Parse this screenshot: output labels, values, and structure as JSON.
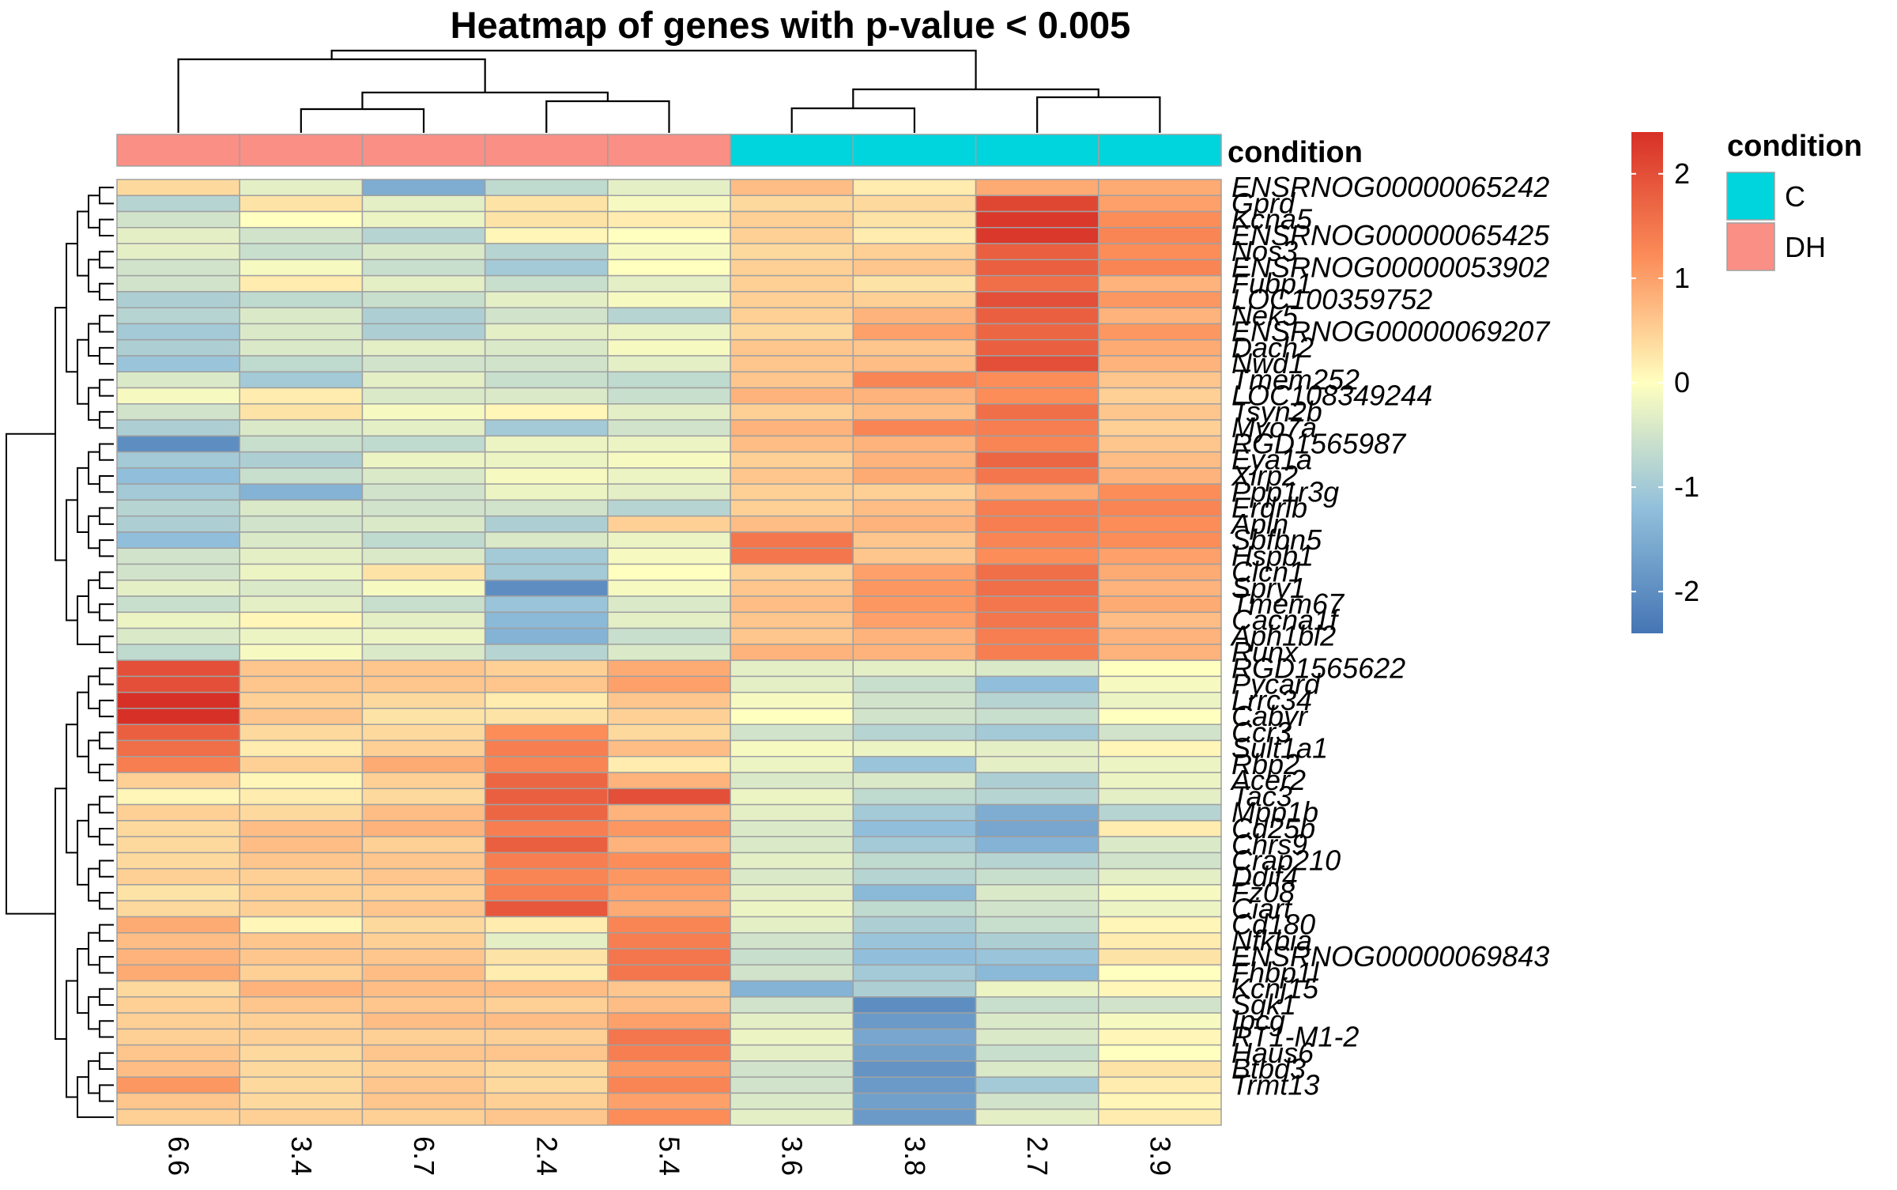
{
  "chart_data": {
    "type": "heatmap",
    "title": "Heatmap of genes with p-value < 0.005",
    "columns": [
      "6.6",
      "3.4",
      "6.7",
      "2.4",
      "5.4",
      "3.6",
      "3.8",
      "2.7",
      "3.9"
    ],
    "column_condition": [
      "DH",
      "DH",
      "DH",
      "DH",
      "DH",
      "C",
      "C",
      "C",
      "C"
    ],
    "annotation_label": "condition",
    "annotation_legend": {
      "title": "condition",
      "entries": [
        {
          "label": "C",
          "color": "#00d4dc"
        },
        {
          "label": "DH",
          "color": "#fa8f86"
        }
      ]
    },
    "color_scale": {
      "ticks": [
        "2",
        "1",
        "0",
        "-1",
        "-2"
      ],
      "tick_values": [
        2,
        1,
        0,
        -1,
        -2
      ],
      "range": [
        -2.4,
        2.4
      ],
      "stops": [
        {
          "value": -2.4,
          "color": "#4575b4"
        },
        {
          "value": -1.2,
          "color": "#91bfdb"
        },
        {
          "value": 0,
          "color": "#ffffbf"
        },
        {
          "value": 1.2,
          "color": "#fc8d59"
        },
        {
          "value": 2.4,
          "color": "#d73027"
        }
      ]
    },
    "rows": [
      {
        "label": "ENSRNOG00000065242",
        "values": [
          0.4,
          -0.3,
          -1.5,
          -0.7,
          -0.3,
          0.7,
          0.2,
          0.9,
          0.9
        ]
      },
      {
        "label": "Gprd",
        "values": [
          -0.8,
          0.3,
          -0.3,
          0.3,
          -0.1,
          0.4,
          0.4,
          2.1,
          1.0
        ]
      },
      {
        "label": "Kcna5",
        "values": [
          -0.5,
          0.0,
          -0.2,
          0.3,
          0.2,
          0.5,
          0.3,
          2.3,
          1.2
        ]
      },
      {
        "label": "ENSRNOG00000065425",
        "values": [
          -0.3,
          -0.5,
          -0.8,
          0.1,
          0.0,
          0.5,
          0.2,
          2.3,
          1.3
        ]
      },
      {
        "label": "Nos3",
        "values": [
          -0.3,
          -0.6,
          -0.4,
          -0.8,
          -0.1,
          0.4,
          0.5,
          1.8,
          1.2
        ]
      },
      {
        "label": "ENSRNOG00000053902",
        "values": [
          -0.5,
          -0.1,
          -0.6,
          -1.0,
          0.0,
          0.5,
          0.6,
          1.8,
          1.3
        ]
      },
      {
        "label": "Fubp1",
        "values": [
          -0.5,
          0.2,
          -0.3,
          -0.6,
          -0.3,
          0.5,
          0.3,
          1.6,
          0.8
        ]
      },
      {
        "label": "LOC100359752",
        "values": [
          -0.9,
          -0.7,
          -0.6,
          -0.3,
          -0.1,
          0.5,
          0.5,
          2.0,
          1.1
        ]
      },
      {
        "label": "Nek5",
        "values": [
          -0.8,
          -0.4,
          -0.9,
          -0.5,
          -0.8,
          0.5,
          0.8,
          1.8,
          0.8
        ]
      },
      {
        "label": "ENSRNOG00000069207",
        "values": [
          -1.0,
          -0.4,
          -0.9,
          -0.3,
          -0.2,
          0.4,
          1.0,
          1.7,
          1.1
        ]
      },
      {
        "label": "Dach2",
        "values": [
          -0.9,
          -0.4,
          -0.3,
          -0.4,
          -0.1,
          0.6,
          0.6,
          1.8,
          0.9
        ]
      },
      {
        "label": "Nwd1",
        "values": [
          -1.1,
          -0.7,
          -0.5,
          -0.5,
          -0.3,
          0.6,
          0.7,
          2.0,
          0.8
        ]
      },
      {
        "label": "Tmem252",
        "values": [
          -0.4,
          -1.0,
          -0.3,
          -0.6,
          -0.7,
          0.6,
          1.3,
          1.2,
          0.6
        ]
      },
      {
        "label": "LOC108349244",
        "values": [
          -0.1,
          0.2,
          -0.4,
          -0.4,
          -0.6,
          0.8,
          0.8,
          1.2,
          0.5
        ]
      },
      {
        "label": "Tsyn2b",
        "values": [
          -0.5,
          0.3,
          -0.1,
          0.1,
          -0.3,
          0.5,
          0.7,
          1.6,
          0.6
        ]
      },
      {
        "label": "Myo7a",
        "values": [
          -0.9,
          -0.4,
          -0.3,
          -1.0,
          -0.5,
          0.8,
          1.3,
          1.4,
          0.5
        ]
      },
      {
        "label": "RGD1565987",
        "values": [
          -2.0,
          -0.6,
          -0.7,
          -0.2,
          -0.2,
          0.7,
          0.8,
          1.3,
          0.6
        ]
      },
      {
        "label": "Eya1a",
        "values": [
          -1.0,
          -0.9,
          -0.2,
          -0.2,
          -0.1,
          0.5,
          0.8,
          1.7,
          0.7
        ]
      },
      {
        "label": "Xirp2",
        "values": [
          -1.2,
          -0.6,
          -0.4,
          -0.1,
          -0.2,
          0.6,
          0.9,
          1.5,
          0.8
        ]
      },
      {
        "label": "Ppp1r3g",
        "values": [
          -1.0,
          -1.4,
          -0.5,
          -0.2,
          -0.3,
          0.5,
          0.5,
          0.9,
          1.2
        ]
      },
      {
        "label": "Erdrlb",
        "values": [
          -0.8,
          -0.4,
          -0.5,
          -0.5,
          -0.8,
          0.5,
          0.7,
          1.4,
          1.3
        ]
      },
      {
        "label": "Apln",
        "values": [
          -0.9,
          -0.5,
          -0.4,
          -0.9,
          0.5,
          0.7,
          0.8,
          1.4,
          1.2
        ]
      },
      {
        "label": "Sbfbn5",
        "values": [
          -1.2,
          -0.4,
          -0.7,
          -0.4,
          -0.2,
          1.5,
          0.6,
          1.3,
          1.2
        ]
      },
      {
        "label": "Hspb1",
        "values": [
          -0.5,
          -0.3,
          -0.4,
          -1.0,
          -0.1,
          1.5,
          0.6,
          1.2,
          1.0
        ]
      },
      {
        "label": "Clcn1",
        "values": [
          -0.5,
          -0.2,
          0.3,
          -1.0,
          0.0,
          0.5,
          1.0,
          1.6,
          0.9
        ]
      },
      {
        "label": "Spry1",
        "values": [
          -0.3,
          -0.4,
          -0.1,
          -2.0,
          -0.1,
          0.6,
          1.1,
          1.6,
          0.8
        ]
      },
      {
        "label": "Tmem67",
        "values": [
          -0.6,
          -0.3,
          -0.6,
          -1.1,
          -0.4,
          0.7,
          1.1,
          1.5,
          0.9
        ]
      },
      {
        "label": "Cacna1f",
        "values": [
          -0.2,
          0.1,
          -0.3,
          -1.3,
          -0.3,
          0.6,
          1.0,
          1.5,
          0.7
        ]
      },
      {
        "label": "Aph1bl2",
        "values": [
          -0.4,
          -0.2,
          -0.2,
          -1.4,
          -0.6,
          0.6,
          0.8,
          1.4,
          0.8
        ]
      },
      {
        "label": "Runx",
        "values": [
          -0.7,
          -0.1,
          -0.4,
          -0.8,
          -0.4,
          0.8,
          0.8,
          1.4,
          0.8
        ]
      },
      {
        "label": "RGD1565622",
        "values": [
          2.0,
          0.6,
          0.6,
          0.5,
          0.9,
          -0.3,
          -0.3,
          -0.4,
          0.0
        ]
      },
      {
        "label": "Pycard",
        "values": [
          2.0,
          0.6,
          0.6,
          0.6,
          1.0,
          -0.3,
          -0.6,
          -1.2,
          -0.1
        ]
      },
      {
        "label": "Lrrc34",
        "values": [
          2.4,
          0.5,
          0.4,
          0.2,
          0.6,
          -0.1,
          -0.5,
          -0.8,
          -0.2
        ]
      },
      {
        "label": "Cabyr",
        "values": [
          2.4,
          0.6,
          0.3,
          0.3,
          0.5,
          0.0,
          -0.5,
          -0.6,
          0.0
        ]
      },
      {
        "label": "Ccr3",
        "values": [
          1.8,
          0.4,
          0.4,
          1.2,
          0.4,
          -0.5,
          -0.8,
          -1.0,
          -0.5
        ]
      },
      {
        "label": "Sult1a1",
        "values": [
          1.6,
          0.2,
          0.5,
          1.4,
          0.7,
          -0.1,
          -0.2,
          -0.3,
          0.1
        ]
      },
      {
        "label": "Rbp2",
        "values": [
          1.4,
          0.5,
          0.9,
          1.3,
          0.2,
          -0.2,
          -1.1,
          -0.3,
          -0.2
        ]
      },
      {
        "label": "Acer2",
        "values": [
          0.5,
          0.1,
          0.5,
          1.7,
          0.8,
          -0.4,
          -0.4,
          -0.9,
          -0.2
        ]
      },
      {
        "label": "Tac3",
        "values": [
          0.1,
          0.2,
          0.4,
          1.8,
          2.0,
          -0.2,
          -0.7,
          -0.8,
          -0.3
        ]
      },
      {
        "label": "Mpp1b",
        "values": [
          0.5,
          0.4,
          0.7,
          1.7,
          0.8,
          -0.3,
          -1.0,
          -1.5,
          -0.8
        ]
      },
      {
        "label": "Cd25b",
        "values": [
          0.4,
          0.7,
          0.8,
          1.4,
          1.1,
          -0.4,
          -1.2,
          -1.6,
          0.2
        ]
      },
      {
        "label": "Chrs9",
        "values": [
          0.4,
          0.7,
          0.5,
          1.8,
          0.8,
          -0.4,
          -1.0,
          -1.4,
          -0.4
        ]
      },
      {
        "label": "Crap210",
        "values": [
          0.4,
          0.6,
          0.6,
          1.4,
          1.2,
          -0.3,
          -0.7,
          -0.8,
          -0.5
        ]
      },
      {
        "label": "Ddif4",
        "values": [
          0.5,
          0.5,
          0.6,
          1.3,
          1.1,
          -0.4,
          -0.8,
          -0.6,
          -0.3
        ]
      },
      {
        "label": "Fz08",
        "values": [
          0.3,
          0.5,
          0.5,
          1.4,
          1.0,
          -0.3,
          -1.3,
          -0.4,
          -0.1
        ]
      },
      {
        "label": "Ciart",
        "values": [
          0.4,
          0.5,
          0.6,
          1.9,
          0.9,
          -0.2,
          -0.7,
          -0.5,
          -0.2
        ]
      },
      {
        "label": "Cd180",
        "values": [
          0.9,
          0.1,
          0.4,
          0.2,
          1.3,
          -0.3,
          -0.9,
          -0.6,
          0.1
        ]
      },
      {
        "label": "Nfkbia",
        "values": [
          0.7,
          0.6,
          0.5,
          -0.3,
          1.4,
          -0.5,
          -1.1,
          -0.9,
          0.2
        ]
      },
      {
        "label": "ENSRNOG00000069843",
        "values": [
          0.8,
          0.6,
          0.6,
          0.3,
          1.5,
          -0.6,
          -1.2,
          -1.1,
          0.3
        ]
      },
      {
        "label": "Fhbp1l",
        "values": [
          0.9,
          0.5,
          0.7,
          0.2,
          1.5,
          -0.5,
          -1.0,
          -1.3,
          0.0
        ]
      },
      {
        "label": "Kcnj15",
        "values": [
          0.4,
          0.8,
          0.7,
          0.7,
          0.6,
          -1.4,
          -0.9,
          -0.2,
          0.1
        ]
      },
      {
        "label": "Sgk1",
        "values": [
          0.5,
          0.6,
          0.6,
          0.5,
          0.7,
          -0.5,
          -2.0,
          -0.6,
          -0.5
        ]
      },
      {
        "label": "Ipcg",
        "values": [
          0.5,
          0.5,
          0.7,
          0.7,
          1.0,
          -0.3,
          -1.8,
          -0.4,
          -0.1
        ]
      },
      {
        "label": "RT1-M1-2",
        "values": [
          0.5,
          0.5,
          0.5,
          0.5,
          1.5,
          -0.2,
          -1.6,
          -0.4,
          0.1
        ]
      },
      {
        "label": "Haus6",
        "values": [
          0.6,
          0.4,
          0.6,
          0.6,
          1.4,
          -0.3,
          -1.7,
          -0.6,
          0.0
        ]
      },
      {
        "label": "Btbd3",
        "values": [
          0.7,
          0.4,
          0.5,
          0.4,
          1.1,
          -0.5,
          -1.9,
          -0.4,
          0.3
        ]
      },
      {
        "label": "Trmt13",
        "values": [
          1.1,
          0.4,
          0.6,
          0.4,
          1.3,
          -0.5,
          -1.8,
          -1.0,
          0.2
        ]
      },
      {
        "label": "",
        "values": [
          0.6,
          0.4,
          0.6,
          0.5,
          1.0,
          -0.4,
          -1.7,
          -0.5,
          0.1
        ]
      },
      {
        "label": "",
        "values": [
          0.5,
          0.5,
          0.5,
          0.6,
          1.2,
          -0.3,
          -1.8,
          -0.3,
          0.2
        ]
      }
    ]
  }
}
